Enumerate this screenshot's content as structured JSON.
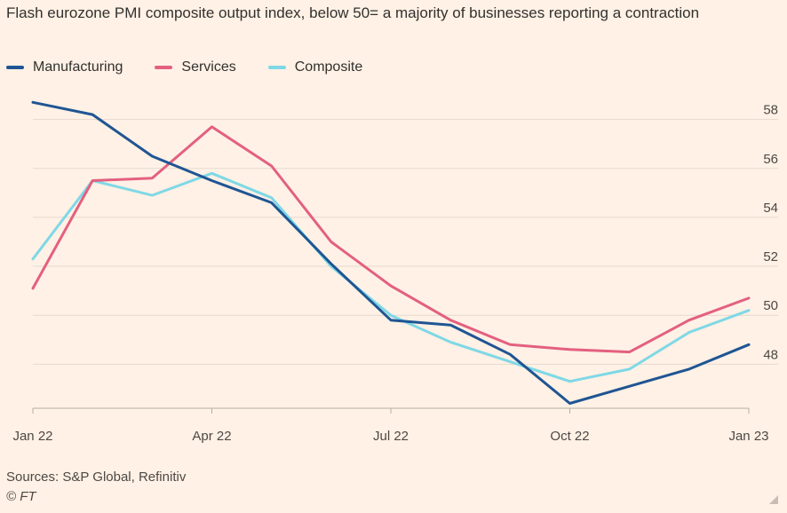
{
  "chart_data": {
    "type": "line",
    "title": "Flash eurozone PMI composite output index, below 50= a majority of businesses reporting a contraction",
    "categories": [
      "Jan 22",
      "Feb 22",
      "Mar 22",
      "Apr 22",
      "May 22",
      "Jun 22",
      "Jul 22",
      "Aug 22",
      "Sep 22",
      "Oct 22",
      "Nov 22",
      "Dec 22",
      "Jan 23"
    ],
    "x_tick_labels": [
      "Jan 22",
      "Apr 22",
      "Jul 22",
      "Oct 22",
      "Jan 23"
    ],
    "series": [
      {
        "name": "Manufacturing",
        "color": "#1f5593",
        "values": [
          58.7,
          58.2,
          56.5,
          55.5,
          54.6,
          52.1,
          49.8,
          49.6,
          48.4,
          46.4,
          47.1,
          47.8,
          48.8
        ]
      },
      {
        "name": "Services",
        "color": "#e3607f",
        "values": [
          51.1,
          55.5,
          55.6,
          57.7,
          56.1,
          53.0,
          51.2,
          49.8,
          48.8,
          48.6,
          48.5,
          49.8,
          50.7
        ]
      },
      {
        "name": "Composite",
        "color": "#7fd8e6",
        "values": [
          52.3,
          55.5,
          54.9,
          55.8,
          54.8,
          52.0,
          50.0,
          48.9,
          48.1,
          47.3,
          47.8,
          49.3,
          50.2
        ]
      }
    ],
    "y_ticks": [
      48,
      50,
      52,
      54,
      56,
      58
    ],
    "ylim": [
      46.2,
      59.4
    ],
    "grid": true,
    "legend_position": "top-left",
    "xlabel": "",
    "ylabel": ""
  },
  "legend": {
    "items": [
      {
        "label": "Manufacturing",
        "color": "#1f5593"
      },
      {
        "label": "Services",
        "color": "#e3607f"
      },
      {
        "label": "Composite",
        "color": "#7fd8e6"
      }
    ]
  },
  "footer": {
    "source": "Sources: S&P Global, Refinitiv",
    "copyright": "© FT"
  },
  "colors": {
    "background": "#fff1e5",
    "grid": "#e6d9ce",
    "axis": "#b8ada4"
  }
}
